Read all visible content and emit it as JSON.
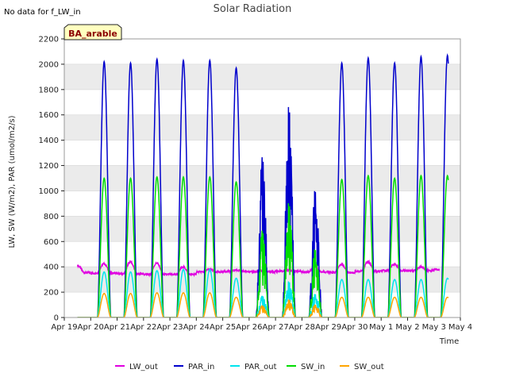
{
  "note": "No data for f_LW_in",
  "badge": "BA_arable",
  "chart_data": {
    "type": "line",
    "title": "Solar Radiation",
    "xlabel": "Time",
    "ylabel": "LW, SW (W/m2), PAR (umol/m2/s)",
    "ylim": [
      0,
      2200
    ],
    "yticks": [
      0,
      200,
      400,
      600,
      800,
      1000,
      1200,
      1400,
      1600,
      1800,
      2000,
      2200
    ],
    "xlim": [
      0,
      15
    ],
    "xtick_labels": [
      "Apr 19",
      "Apr 20",
      "Apr 21",
      "Apr 22",
      "Apr 23",
      "Apr 24",
      "Apr 25",
      "Apr 26",
      "Apr 27",
      "Apr 28",
      "Apr 29",
      "Apr 30",
      "May 1",
      "May 2",
      "May 3",
      "May 4"
    ],
    "grid": "horizontal bands",
    "legend_position": "bottom",
    "day_start_index": 0.5,
    "days": [
      "Apr 19",
      "Apr 20",
      "Apr 21",
      "Apr 22",
      "Apr 23",
      "Apr 24",
      "Apr 25",
      "Apr 26",
      "Apr 27",
      "Apr 28",
      "Apr 29",
      "Apr 30",
      "May 1",
      "May 2",
      "May 3"
    ],
    "series": [
      {
        "name": "LW_out",
        "color": "#e000e0",
        "kind": "baseline",
        "night": [
          355,
          350,
          345,
          340,
          340,
          360,
          365,
          360,
          365,
          360,
          355,
          365,
          370,
          370,
          380
        ],
        "day": [
          410,
          425,
          440,
          430,
          400,
          380,
          375,
          370,
          375,
          400,
          420,
          440,
          420,
          400,
          395
        ]
      },
      {
        "name": "PAR_in",
        "color": "#0000cc",
        "kind": "peak",
        "peaks": [
          2020,
          2010,
          2040,
          2030,
          2030,
          1970,
          1330,
          1750,
          1080,
          2010,
          2050,
          2010,
          2060,
          2070
        ]
      },
      {
        "name": "PAR_out",
        "color": "#00e5ee",
        "kind": "peak",
        "peaks": [
          360,
          360,
          370,
          380,
          380,
          310,
          180,
          300,
          200,
          300,
          300,
          300,
          300,
          310
        ]
      },
      {
        "name": "SW_in",
        "color": "#00dd00",
        "kind": "peak",
        "peaks": [
          1100,
          1100,
          1110,
          1110,
          1110,
          1070,
          720,
          950,
          580,
          1090,
          1120,
          1100,
          1120,
          1120
        ]
      },
      {
        "name": "SW_out",
        "color": "#ffa500",
        "kind": "peak",
        "peaks": [
          190,
          190,
          195,
          195,
          195,
          160,
          100,
          150,
          110,
          160,
          160,
          160,
          160,
          160
        ]
      }
    ]
  }
}
